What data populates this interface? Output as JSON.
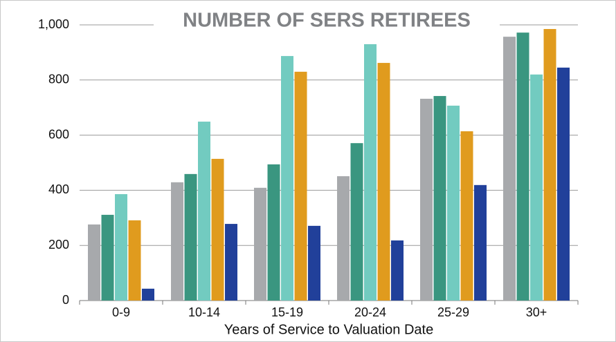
{
  "chart_data": {
    "type": "bar",
    "title": "NUMBER OF SERS RETIREES",
    "x_label": "Years of Service to Valuation Date",
    "categories": [
      "0-9",
      "10-14",
      "15-19",
      "20-24",
      "25-29",
      "30+"
    ],
    "series": [
      {
        "color": "#a7a9ac",
        "values": [
          276,
          429,
          409,
          451,
          732,
          957
        ]
      },
      {
        "color": "#3a9680",
        "values": [
          311,
          459,
          494,
          571,
          742,
          972
        ]
      },
      {
        "color": "#72cbc0",
        "values": [
          386,
          649,
          887,
          930,
          707,
          820
        ]
      },
      {
        "color": "#e09b1e",
        "values": [
          291,
          514,
          830,
          862,
          614,
          985
        ]
      },
      {
        "color": "#21409a",
        "values": [
          43,
          278,
          271,
          218,
          419,
          845
        ]
      }
    ],
    "ylim": [
      0,
      1000
    ],
    "yticks": [
      0,
      200,
      400,
      600,
      800,
      {
        "value": 1000,
        "label": "1,000"
      }
    ],
    "grid": true
  }
}
